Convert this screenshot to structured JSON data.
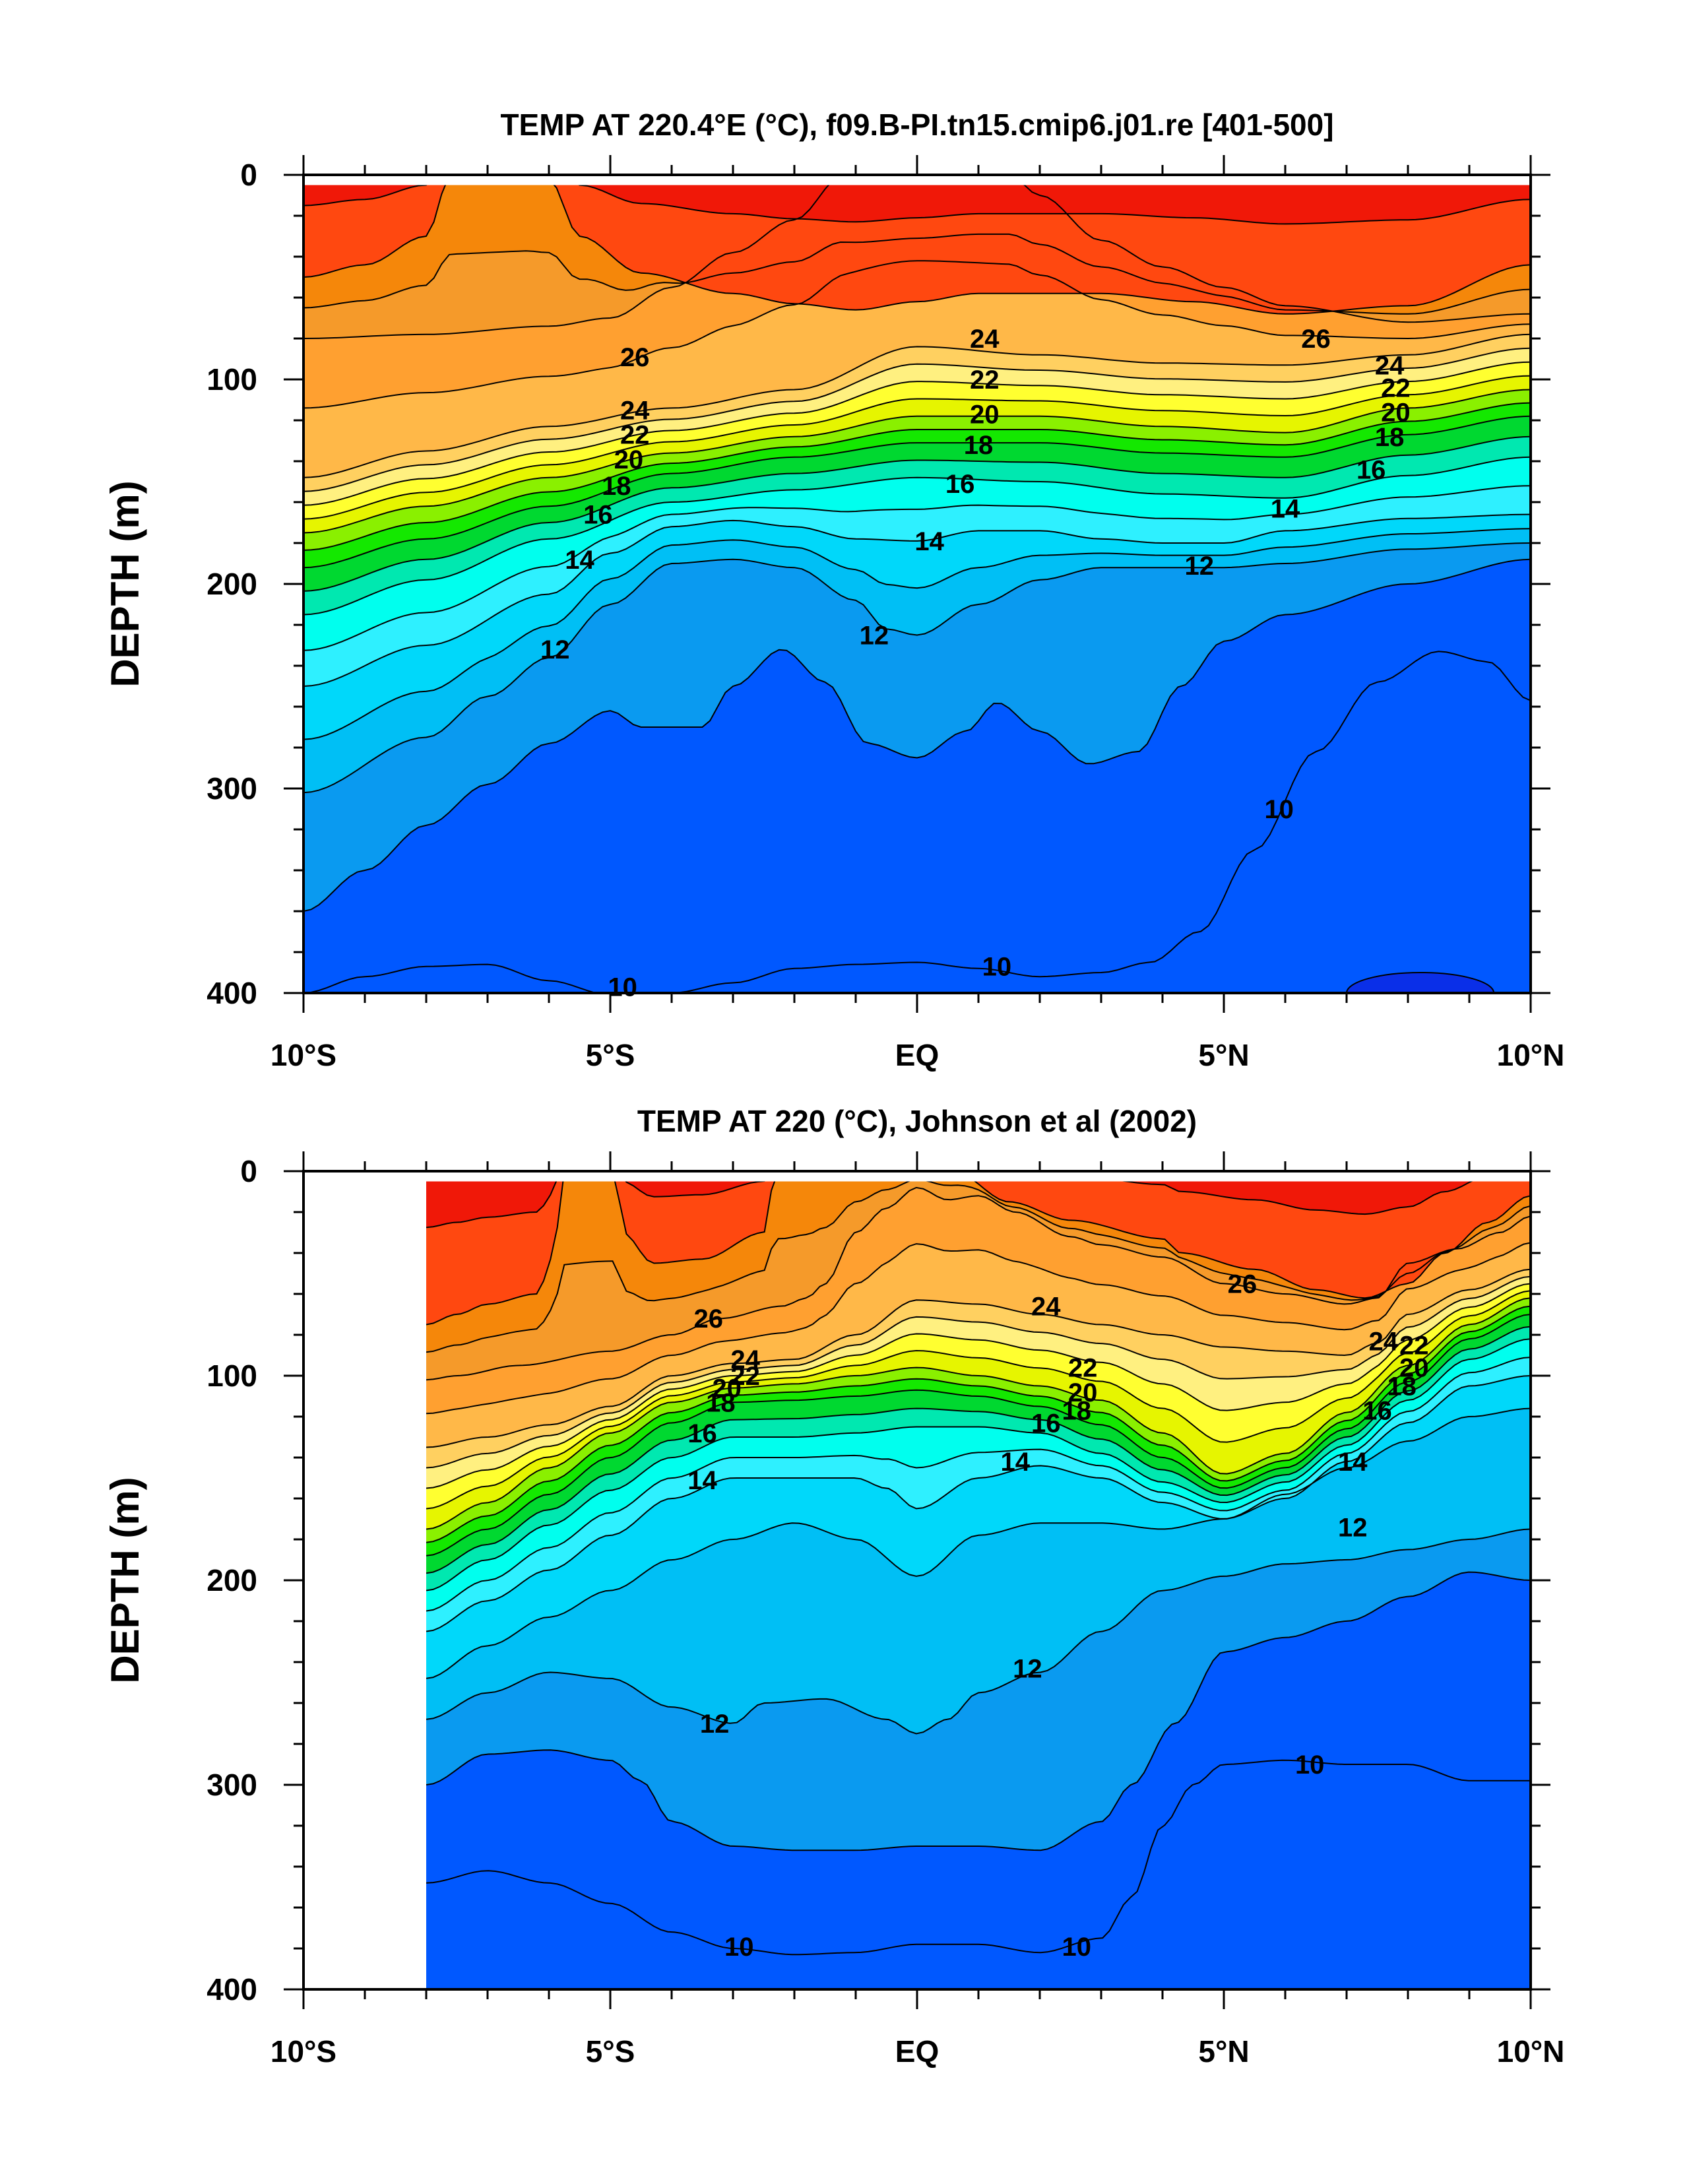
{
  "chart_data": [
    {
      "type": "contour",
      "title": "TEMP AT 220.4°E (°C), f09.B-PI.tn15.cmip6.j01.re [401-500]",
      "ylabel": "DEPTH (m)",
      "xlabel": "",
      "xlim": [
        -10,
        10
      ],
      "ylim": [
        0,
        400
      ],
      "yreversed": true,
      "x_tick_labels": [
        "10°S",
        "5°S",
        "EQ",
        "5°N",
        "10°N"
      ],
      "y_tick_labels": [
        "0",
        "100",
        "200",
        "300",
        "400"
      ],
      "x_tick_values": [
        -10,
        -5,
        0,
        5,
        10
      ],
      "y_tick_values": [
        0,
        100,
        200,
        300,
        400
      ],
      "data_x_range": [
        -10,
        10
      ],
      "contour_interval": 1,
      "color_levels": [
        {
          "max": 10,
          "color": "#0a2fe8"
        },
        {
          "max": 11,
          "color": "#0058ff"
        },
        {
          "max": 12,
          "color": "#0a9af0"
        },
        {
          "max": 13,
          "color": "#00bff5"
        },
        {
          "max": 14,
          "color": "#00d8fa"
        },
        {
          "max": 15,
          "color": "#2ef0ff"
        },
        {
          "max": 16,
          "color": "#00ffee"
        },
        {
          "max": 17,
          "color": "#00e8b0"
        },
        {
          "max": 18,
          "color": "#00d830"
        },
        {
          "max": 19,
          "color": "#14e800"
        },
        {
          "max": 20,
          "color": "#8af000"
        },
        {
          "max": 21,
          "color": "#e6f500"
        },
        {
          "max": 22,
          "color": "#ffff30"
        },
        {
          "max": 23,
          "color": "#fff080"
        },
        {
          "max": 24,
          "color": "#ffd060"
        },
        {
          "max": 25,
          "color": "#ffb848"
        },
        {
          "max": 26,
          "color": "#ffa030"
        },
        {
          "max": 27,
          "color": "#f59a2a"
        },
        {
          "max": 28,
          "color": "#f5870a"
        },
        {
          "max": 29,
          "color": "#ff4810"
        },
        {
          "max": 99,
          "color": "#f01808"
        }
      ],
      "contour_labels": [
        {
          "text": "26",
          "x": -4.6,
          "y": 89
        },
        {
          "text": "24",
          "x": -4.6,
          "y": 115
        },
        {
          "text": "22",
          "x": -4.6,
          "y": 127
        },
        {
          "text": "20",
          "x": -4.7,
          "y": 139
        },
        {
          "text": "18",
          "x": -4.9,
          "y": 152
        },
        {
          "text": "16",
          "x": -5.2,
          "y": 166
        },
        {
          "text": "14",
          "x": -5.5,
          "y": 188
        },
        {
          "text": "12",
          "x": -5.9,
          "y": 232
        },
        {
          "text": "24",
          "x": 1.1,
          "y": 80
        },
        {
          "text": "22",
          "x": 1.1,
          "y": 100
        },
        {
          "text": "20",
          "x": 1.1,
          "y": 117
        },
        {
          "text": "18",
          "x": 1.0,
          "y": 132
        },
        {
          "text": "16",
          "x": 0.7,
          "y": 151
        },
        {
          "text": "14",
          "x": 0.2,
          "y": 179
        },
        {
          "text": "12",
          "x": -0.7,
          "y": 225
        },
        {
          "text": "26",
          "x": 6.5,
          "y": 80
        },
        {
          "text": "24",
          "x": 7.7,
          "y": 93
        },
        {
          "text": "22",
          "x": 7.8,
          "y": 104
        },
        {
          "text": "20",
          "x": 7.8,
          "y": 116
        },
        {
          "text": "18",
          "x": 7.7,
          "y": 128
        },
        {
          "text": "16",
          "x": 7.4,
          "y": 144
        },
        {
          "text": "14",
          "x": 6.0,
          "y": 163
        },
        {
          "text": "12",
          "x": 4.6,
          "y": 191
        },
        {
          "text": "10",
          "x": 5.9,
          "y": 310
        },
        {
          "text": "10",
          "x": 1.3,
          "y": 387
        },
        {
          "text": "10",
          "x": -4.8,
          "y": 397
        }
      ]
    },
    {
      "type": "contour",
      "title": "TEMP AT 220 (°C), Johnson et al (2002)",
      "ylabel": "DEPTH (m)",
      "xlabel": "",
      "xlim": [
        -10,
        10
      ],
      "ylim": [
        0,
        400
      ],
      "yreversed": true,
      "x_tick_labels": [
        "10°S",
        "5°S",
        "EQ",
        "5°N",
        "10°N"
      ],
      "y_tick_labels": [
        "0",
        "100",
        "200",
        "300",
        "400"
      ],
      "x_tick_values": [
        -10,
        -5,
        0,
        5,
        10
      ],
      "y_tick_values": [
        0,
        100,
        200,
        300,
        400
      ],
      "data_x_range": [
        -8,
        10
      ],
      "contour_interval": 1,
      "color_levels": [
        {
          "max": 10,
          "color": "#0a2fe8"
        },
        {
          "max": 11,
          "color": "#0058ff"
        },
        {
          "max": 12,
          "color": "#0a9af0"
        },
        {
          "max": 13,
          "color": "#00bff5"
        },
        {
          "max": 14,
          "color": "#00d8fa"
        },
        {
          "max": 15,
          "color": "#2ef0ff"
        },
        {
          "max": 16,
          "color": "#00ffee"
        },
        {
          "max": 17,
          "color": "#00e8b0"
        },
        {
          "max": 18,
          "color": "#00d830"
        },
        {
          "max": 19,
          "color": "#14e800"
        },
        {
          "max": 20,
          "color": "#8af000"
        },
        {
          "max": 21,
          "color": "#e6f500"
        },
        {
          "max": 22,
          "color": "#ffff30"
        },
        {
          "max": 23,
          "color": "#fff080"
        },
        {
          "max": 24,
          "color": "#ffd060"
        },
        {
          "max": 25,
          "color": "#ffb848"
        },
        {
          "max": 26,
          "color": "#ffa030"
        },
        {
          "max": 27,
          "color": "#f59a2a"
        },
        {
          "max": 28,
          "color": "#f5870a"
        },
        {
          "max": 29,
          "color": "#ff4810"
        },
        {
          "max": 99,
          "color": "#f01808"
        }
      ],
      "contour_labels": [
        {
          "text": "26",
          "x": -3.4,
          "y": 72
        },
        {
          "text": "24",
          "x": -2.8,
          "y": 92
        },
        {
          "text": "22",
          "x": -2.8,
          "y": 100
        },
        {
          "text": "20",
          "x": -3.1,
          "y": 106
        },
        {
          "text": "18",
          "x": -3.2,
          "y": 113
        },
        {
          "text": "16",
          "x": -3.5,
          "y": 128
        },
        {
          "text": "14",
          "x": -3.5,
          "y": 151
        },
        {
          "text": "24",
          "x": 2.1,
          "y": 66
        },
        {
          "text": "22",
          "x": 2.7,
          "y": 96
        },
        {
          "text": "20",
          "x": 2.7,
          "y": 108
        },
        {
          "text": "18",
          "x": 2.6,
          "y": 117
        },
        {
          "text": "16",
          "x": 2.1,
          "y": 123
        },
        {
          "text": "14",
          "x": 1.6,
          "y": 142
        },
        {
          "text": "26",
          "x": 5.3,
          "y": 55
        },
        {
          "text": "24",
          "x": 7.6,
          "y": 83
        },
        {
          "text": "22",
          "x": 8.1,
          "y": 85
        },
        {
          "text": "20",
          "x": 8.1,
          "y": 96
        },
        {
          "text": "18",
          "x": 7.9,
          "y": 105
        },
        {
          "text": "16",
          "x": 7.5,
          "y": 117
        },
        {
          "text": "14",
          "x": 7.1,
          "y": 142
        },
        {
          "text": "12",
          "x": 7.1,
          "y": 174
        },
        {
          "text": "12",
          "x": 1.8,
          "y": 243
        },
        {
          "text": "12",
          "x": -3.3,
          "y": 270
        },
        {
          "text": "10",
          "x": 6.4,
          "y": 290
        },
        {
          "text": "10",
          "x": -2.9,
          "y": 379
        },
        {
          "text": "10",
          "x": 2.6,
          "y": 379
        }
      ]
    }
  ]
}
